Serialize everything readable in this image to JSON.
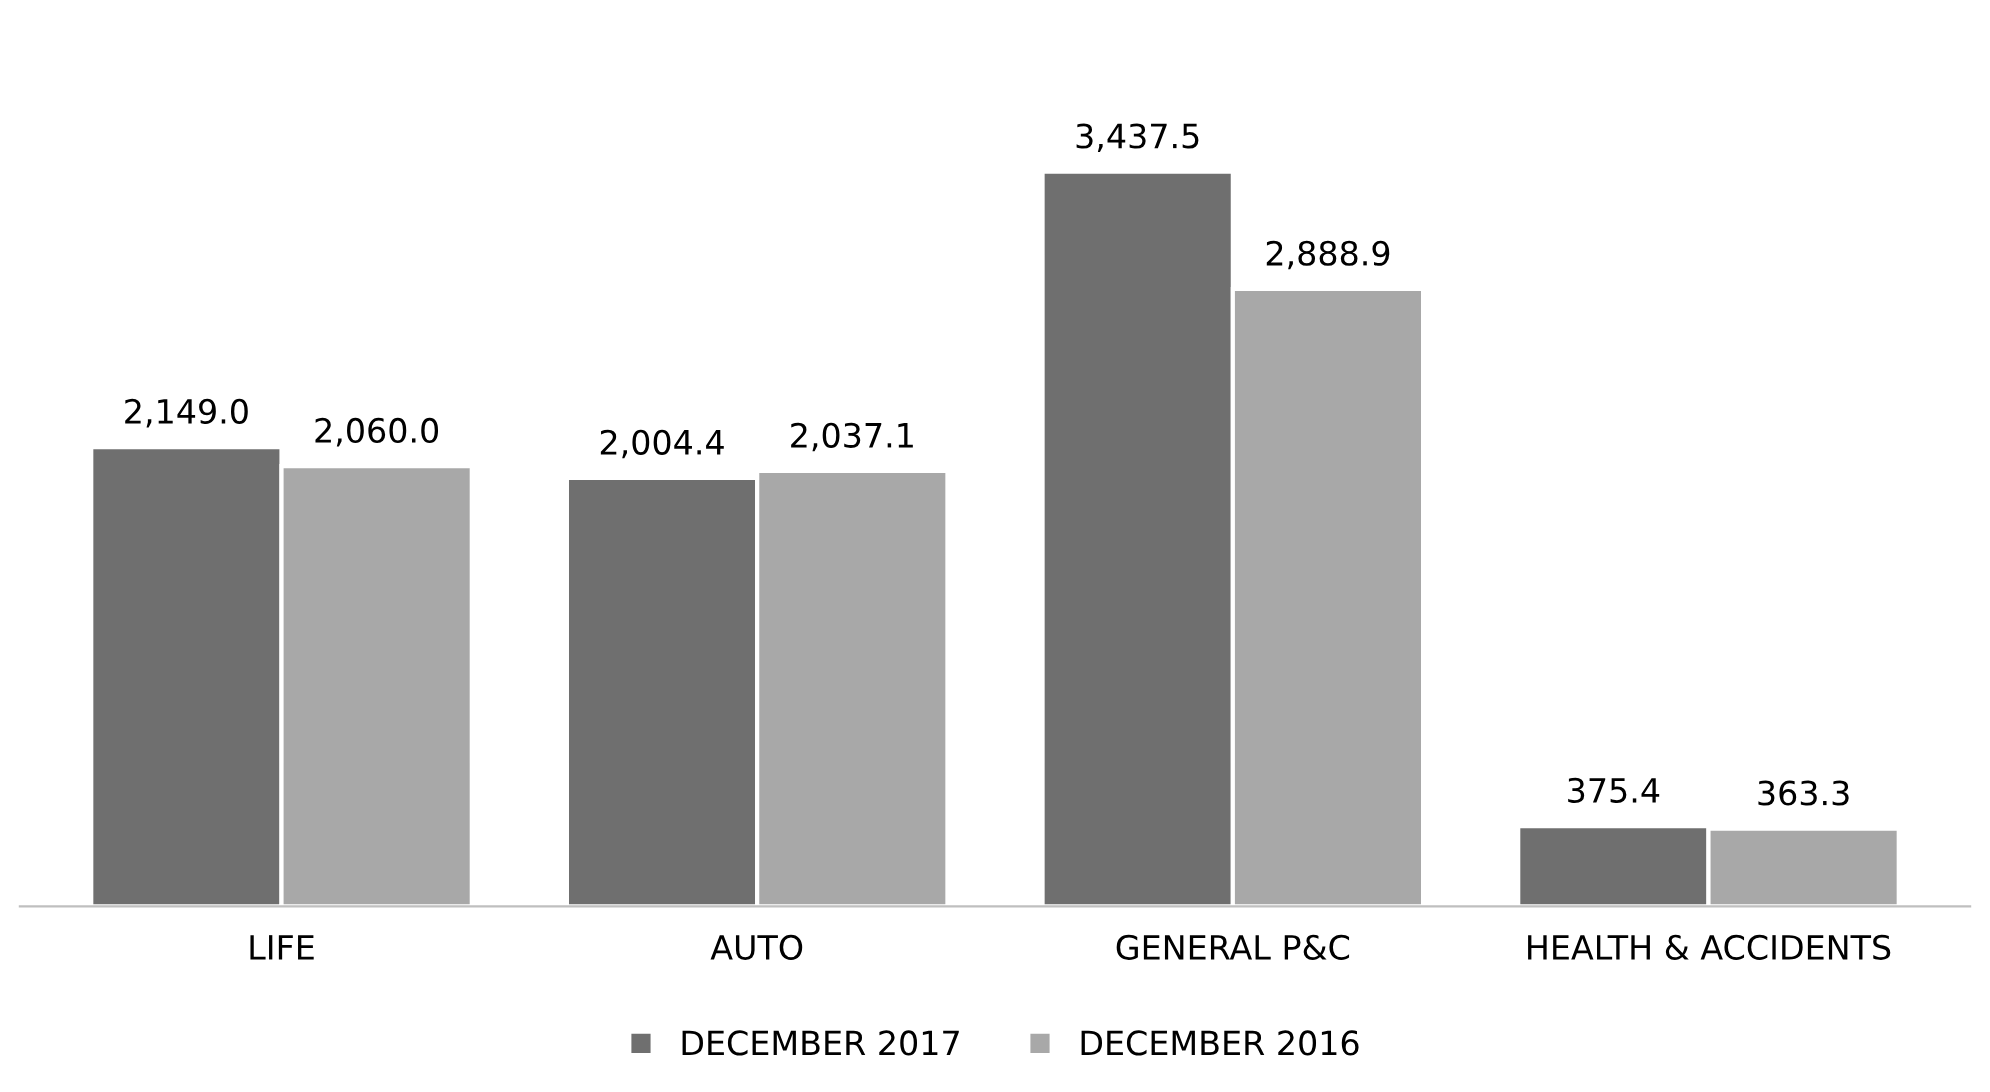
{
  "chart_data": {
    "type": "bar",
    "categories": [
      "LIFE",
      "AUTO",
      "GENERAL P&C",
      "HEALTH & ACCIDENTS"
    ],
    "series": [
      {
        "name": "DECEMBER 2017",
        "color": "#6f6f6f",
        "values": [
          2149.0,
          2004.4,
          3437.5,
          375.4
        ],
        "value_labels": [
          "2,149.0",
          "2,004.4",
          "3,437.5",
          "375.4"
        ]
      },
      {
        "name": "DECEMBER 2016",
        "color": "#a8a8a8",
        "values": [
          2060.0,
          2037.1,
          2888.9,
          363.3
        ],
        "value_labels": [
          "2,060.0",
          "2,037.1",
          "2,888.9",
          "363.3"
        ]
      }
    ],
    "legend": "bottom",
    "grid": false,
    "tick_labels": "x"
  }
}
